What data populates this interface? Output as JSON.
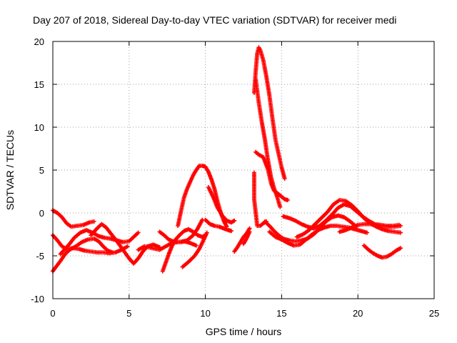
{
  "chart_data": {
    "type": "scatter",
    "title": "Day 207 of 2018, Sidereal Day-to-day VTEC variation (SDTVAR) for receiver medi",
    "xlabel": "GPS time / hours",
    "ylabel": "SDTVAR / TECUs",
    "xlim": [
      0,
      25
    ],
    "ylim": [
      -10,
      20
    ],
    "xticks": [
      0,
      5,
      10,
      15,
      20,
      25
    ],
    "yticks": [
      -10,
      -5,
      0,
      5,
      10,
      15,
      20
    ],
    "grid": true,
    "legend": "none",
    "marker": "plus",
    "series": [
      {
        "name": "track-1",
        "color": "#ff0000",
        "points": [
          [
            0.0,
            0.3
          ],
          [
            0.3,
            0.0
          ],
          [
            0.6,
            -0.5
          ],
          [
            0.9,
            -1.2
          ],
          [
            1.2,
            -1.6
          ],
          [
            1.6,
            -1.5
          ],
          [
            2.0,
            -1.4
          ],
          [
            2.4,
            -1.1
          ],
          [
            2.7,
            -1.0
          ]
        ]
      },
      {
        "name": "track-2",
        "color": "#ff0000",
        "points": [
          [
            0.0,
            -6.8
          ],
          [
            0.2,
            -6.3
          ],
          [
            0.5,
            -5.6
          ],
          [
            0.8,
            -4.8
          ],
          [
            1.1,
            -4.3
          ],
          [
            1.5,
            -3.9
          ],
          [
            1.9,
            -3.4
          ],
          [
            2.3,
            -3.1
          ],
          [
            2.7,
            -3.0
          ],
          [
            3.0,
            -3.3
          ],
          [
            3.3,
            -3.9
          ],
          [
            3.6,
            -4.4
          ],
          [
            3.9,
            -4.6
          ]
        ]
      },
      {
        "name": "track-3",
        "color": "#ff0000",
        "points": [
          [
            0.0,
            -2.6
          ],
          [
            0.3,
            -3.2
          ],
          [
            0.6,
            -3.9
          ],
          [
            0.9,
            -4.2
          ],
          [
            1.3,
            -4.1
          ],
          [
            1.7,
            -4.2
          ],
          [
            2.1,
            -4.4
          ],
          [
            2.5,
            -4.5
          ],
          [
            2.9,
            -4.6
          ],
          [
            3.3,
            -4.6
          ],
          [
            3.7,
            -4.7
          ],
          [
            4.1,
            -4.6
          ],
          [
            4.5,
            -4.3
          ],
          [
            4.9,
            -3.9
          ]
        ]
      },
      {
        "name": "track-4",
        "color": "#ff0000",
        "points": [
          [
            0.5,
            -4.8
          ],
          [
            0.8,
            -4.2
          ],
          [
            1.1,
            -3.6
          ],
          [
            1.4,
            -2.9
          ],
          [
            1.8,
            -2.3
          ],
          [
            2.2,
            -2.0
          ],
          [
            2.6,
            -2.3
          ],
          [
            3.0,
            -2.7
          ],
          [
            3.4,
            -2.9
          ],
          [
            3.8,
            -3.0
          ],
          [
            4.2,
            -3.2
          ],
          [
            4.6,
            -3.4
          ],
          [
            5.0,
            -3.3
          ],
          [
            5.3,
            -2.8
          ],
          [
            5.6,
            -2.3
          ]
        ]
      },
      {
        "name": "track-5",
        "color": "#ff0000",
        "points": [
          [
            2.5,
            -2.6
          ],
          [
            2.9,
            -1.8
          ],
          [
            3.2,
            -1.3
          ],
          [
            3.5,
            -1.7
          ],
          [
            3.8,
            -2.4
          ],
          [
            4.2,
            -3.3
          ],
          [
            4.6,
            -4.3
          ],
          [
            5.0,
            -5.3
          ],
          [
            5.3,
            -5.9
          ],
          [
            5.6,
            -5.3
          ],
          [
            5.9,
            -4.5
          ],
          [
            6.2,
            -3.9
          ],
          [
            6.6,
            -3.7
          ],
          [
            7.0,
            -4.0
          ]
        ]
      },
      {
        "name": "track-6",
        "color": "#ff0000",
        "points": [
          [
            5.6,
            -4.3
          ],
          [
            6.0,
            -3.9
          ],
          [
            6.5,
            -4.1
          ],
          [
            7.0,
            -4.3
          ],
          [
            7.4,
            -3.9
          ],
          [
            7.8,
            -3.5
          ],
          [
            8.2,
            -3.4
          ],
          [
            8.6,
            -3.3
          ],
          [
            9.0,
            -3.5
          ],
          [
            9.4,
            -3.8
          ]
        ]
      },
      {
        "name": "track-7",
        "color": "#ff0000",
        "points": [
          [
            7.2,
            -6.8
          ],
          [
            7.4,
            -5.8
          ],
          [
            7.6,
            -4.8
          ],
          [
            7.8,
            -3.9
          ],
          [
            8.0,
            -3.2
          ],
          [
            8.3,
            -2.6
          ],
          [
            8.6,
            -2.1
          ],
          [
            8.9,
            -1.9
          ],
          [
            9.2,
            -2.2
          ],
          [
            9.5,
            -2.6
          ],
          [
            9.8,
            -2.8
          ],
          [
            10.0,
            -2.6
          ]
        ]
      },
      {
        "name": "track-8",
        "color": "#ff0000",
        "points": [
          [
            7.0,
            -2.2
          ],
          [
            7.3,
            -2.6
          ],
          [
            7.6,
            -3.1
          ],
          [
            8.0,
            -3.4
          ],
          [
            8.4,
            -3.4
          ],
          [
            8.8,
            -3.2
          ],
          [
            9.2,
            -2.6
          ],
          [
            9.5,
            -1.8
          ],
          [
            9.8,
            -0.8
          ]
        ]
      },
      {
        "name": "track-9",
        "color": "#ff0000",
        "points": [
          [
            8.2,
            -1.5
          ],
          [
            8.4,
            0.2
          ],
          [
            8.6,
            1.8
          ],
          [
            8.8,
            2.8
          ],
          [
            9.0,
            3.6
          ],
          [
            9.2,
            4.4
          ],
          [
            9.4,
            5.0
          ],
          [
            9.6,
            5.5
          ],
          [
            9.8,
            5.5
          ],
          [
            10.0,
            5.4
          ],
          [
            10.2,
            4.8
          ],
          [
            10.4,
            3.9
          ],
          [
            10.6,
            2.8
          ],
          [
            10.8,
            1.3
          ],
          [
            11.0,
            0.1
          ],
          [
            11.2,
            -0.9
          ],
          [
            11.4,
            -1.6
          ]
        ]
      },
      {
        "name": "track-10",
        "color": "#ff0000",
        "points": [
          [
            8.5,
            -6.3
          ],
          [
            8.9,
            -5.7
          ],
          [
            9.3,
            -5.0
          ],
          [
            9.6,
            -4.2
          ],
          [
            9.9,
            -3.1
          ],
          [
            10.1,
            -2.3
          ]
        ]
      },
      {
        "name": "track-11",
        "color": "#ff0000",
        "points": [
          [
            10.2,
            3.0
          ],
          [
            10.5,
            1.9
          ],
          [
            10.8,
            0.6
          ],
          [
            11.1,
            -0.3
          ],
          [
            11.4,
            -0.9
          ],
          [
            11.7,
            -1.1
          ],
          [
            11.9,
            -0.9
          ]
        ]
      },
      {
        "name": "track-12",
        "color": "#ff0000",
        "points": [
          [
            10.0,
            -0.8
          ],
          [
            10.3,
            -1.3
          ],
          [
            10.6,
            -1.5
          ],
          [
            10.9,
            -1.6
          ],
          [
            11.2,
            -1.8
          ],
          [
            11.5,
            -2.0
          ],
          [
            11.7,
            -2.1
          ]
        ]
      },
      {
        "name": "track-13",
        "color": "#ff0000",
        "points": [
          [
            11.9,
            -4.5
          ],
          [
            12.1,
            -4.0
          ],
          [
            12.3,
            -3.4
          ],
          [
            12.5,
            -2.8
          ],
          [
            12.7,
            -2.4
          ],
          [
            12.9,
            -1.8
          ]
        ]
      },
      {
        "name": "track-14",
        "color": "#ff0000",
        "points": [
          [
            12.5,
            -3.6
          ],
          [
            12.7,
            -3.0
          ],
          [
            12.9,
            -2.2
          ]
        ]
      },
      {
        "name": "track-15",
        "color": "#ff0000",
        "points": [
          [
            13.2,
            14.0
          ],
          [
            13.3,
            16.5
          ],
          [
            13.4,
            18.6
          ],
          [
            13.5,
            19.3
          ],
          [
            13.6,
            19.0
          ],
          [
            13.8,
            17.8
          ],
          [
            14.0,
            15.9
          ],
          [
            14.2,
            13.7
          ],
          [
            14.4,
            11.0
          ],
          [
            14.6,
            8.5
          ],
          [
            14.8,
            6.9
          ],
          [
            15.0,
            5.3
          ],
          [
            15.2,
            4.0
          ]
        ]
      },
      {
        "name": "track-16",
        "color": "#ff0000",
        "points": [
          [
            13.3,
            15.6
          ],
          [
            13.5,
            12.9
          ],
          [
            13.7,
            10.6
          ],
          [
            13.9,
            8.6
          ],
          [
            14.1,
            6.2
          ],
          [
            14.3,
            4.2
          ],
          [
            14.5,
            2.9
          ],
          [
            14.7,
            1.9
          ],
          [
            14.9,
            0.7
          ]
        ]
      },
      {
        "name": "track-17",
        "color": "#ff0000",
        "points": [
          [
            13.3,
            7.1
          ],
          [
            13.5,
            6.8
          ],
          [
            13.8,
            6.5
          ],
          [
            14.1,
            5.1
          ],
          [
            14.3,
            3.5
          ],
          [
            14.5,
            2.6
          ],
          [
            14.8,
            2.2
          ],
          [
            15.0,
            1.9
          ],
          [
            15.2,
            1.6
          ],
          [
            15.4,
            1.5
          ]
        ]
      },
      {
        "name": "track-18",
        "color": "#ff0000",
        "points": [
          [
            13.2,
            4.7
          ],
          [
            13.2,
            3.0
          ],
          [
            13.2,
            1.6
          ],
          [
            13.4,
            -1.5
          ],
          [
            13.6,
            -1.5
          ],
          [
            13.8,
            -1.2
          ],
          [
            14.0,
            -1.0
          ]
        ]
      },
      {
        "name": "track-19",
        "color": "#ff0000",
        "points": [
          [
            13.9,
            -1.0
          ],
          [
            14.2,
            -1.5
          ],
          [
            14.5,
            -2.1
          ],
          [
            14.8,
            -2.6
          ],
          [
            15.1,
            -3.0
          ],
          [
            15.5,
            -3.2
          ],
          [
            15.9,
            -3.3
          ],
          [
            16.3,
            -3.2
          ],
          [
            16.7,
            -3.0
          ],
          [
            17.1,
            -2.5
          ],
          [
            17.5,
            -1.8
          ],
          [
            17.9,
            -1.0
          ],
          [
            18.3,
            -0.5
          ],
          [
            18.7,
            -0.3
          ],
          [
            19.1,
            -0.5
          ],
          [
            19.5,
            -1.0
          ],
          [
            19.9,
            -1.6
          ]
        ]
      },
      {
        "name": "track-20",
        "color": "#ff0000",
        "points": [
          [
            14.2,
            -2.2
          ],
          [
            14.6,
            -2.8
          ],
          [
            15.0,
            -3.1
          ],
          [
            15.4,
            -3.5
          ],
          [
            15.8,
            -3.8
          ],
          [
            16.2,
            -3.7
          ],
          [
            16.6,
            -3.1
          ],
          [
            17.0,
            -2.5
          ],
          [
            17.4,
            -2.0
          ],
          [
            17.8,
            -1.7
          ],
          [
            18.2,
            -1.5
          ],
          [
            18.6,
            -1.5
          ],
          [
            19.0,
            -1.6
          ],
          [
            19.4,
            -1.7
          ],
          [
            19.8,
            -1.9
          ],
          [
            20.2,
            -2.1
          ],
          [
            20.6,
            -2.3
          ]
        ]
      },
      {
        "name": "track-21",
        "color": "#ff0000",
        "points": [
          [
            15.1,
            -0.4
          ],
          [
            15.5,
            -0.6
          ],
          [
            15.9,
            -0.9
          ],
          [
            16.3,
            -1.3
          ],
          [
            16.7,
            -1.6
          ],
          [
            17.1,
            -1.8
          ],
          [
            17.5,
            -1.5
          ],
          [
            17.9,
            -0.9
          ],
          [
            18.3,
            -0.2
          ],
          [
            18.7,
            0.6
          ],
          [
            19.1,
            1.0
          ],
          [
            19.5,
            0.8
          ],
          [
            19.9,
            0.2
          ],
          [
            20.3,
            -0.4
          ],
          [
            20.7,
            -0.9
          ],
          [
            21.1,
            -1.3
          ],
          [
            21.5,
            -1.4
          ],
          [
            21.9,
            -1.5
          ],
          [
            22.3,
            -1.5
          ],
          [
            22.7,
            -1.4
          ]
        ]
      },
      {
        "name": "track-22",
        "color": "#ff0000",
        "points": [
          [
            16.0,
            -2.8
          ],
          [
            16.4,
            -2.5
          ],
          [
            16.8,
            -2.0
          ],
          [
            17.2,
            -1.3
          ],
          [
            17.6,
            -0.6
          ],
          [
            18.0,
            0.1
          ],
          [
            18.4,
            1.0
          ],
          [
            18.8,
            1.5
          ],
          [
            19.2,
            1.4
          ],
          [
            19.6,
            0.9
          ],
          [
            20.0,
            0.2
          ],
          [
            20.4,
            -0.6
          ],
          [
            20.8,
            -1.2
          ],
          [
            21.2,
            -1.6
          ],
          [
            21.6,
            -1.9
          ],
          [
            22.0,
            -2.1
          ],
          [
            22.4,
            -2.2
          ],
          [
            22.8,
            -2.3
          ]
        ]
      },
      {
        "name": "track-23",
        "color": "#ff0000",
        "points": [
          [
            18.8,
            -2.2
          ],
          [
            19.2,
            -2.0
          ],
          [
            19.6,
            -1.7
          ],
          [
            20.0,
            -1.4
          ],
          [
            20.4,
            -1.3
          ],
          [
            20.8,
            -1.3
          ],
          [
            21.2,
            -1.4
          ],
          [
            21.6,
            -1.5
          ],
          [
            22.0,
            -1.6
          ],
          [
            22.4,
            -1.6
          ],
          [
            22.8,
            -1.5
          ]
        ]
      },
      {
        "name": "track-24",
        "color": "#ff0000",
        "points": [
          [
            20.4,
            -3.8
          ],
          [
            20.7,
            -4.3
          ],
          [
            21.0,
            -4.7
          ],
          [
            21.3,
            -5.0
          ],
          [
            21.6,
            -5.2
          ],
          [
            21.9,
            -5.1
          ],
          [
            22.2,
            -4.8
          ],
          [
            22.5,
            -4.4
          ],
          [
            22.8,
            -4.1
          ]
        ]
      }
    ]
  }
}
